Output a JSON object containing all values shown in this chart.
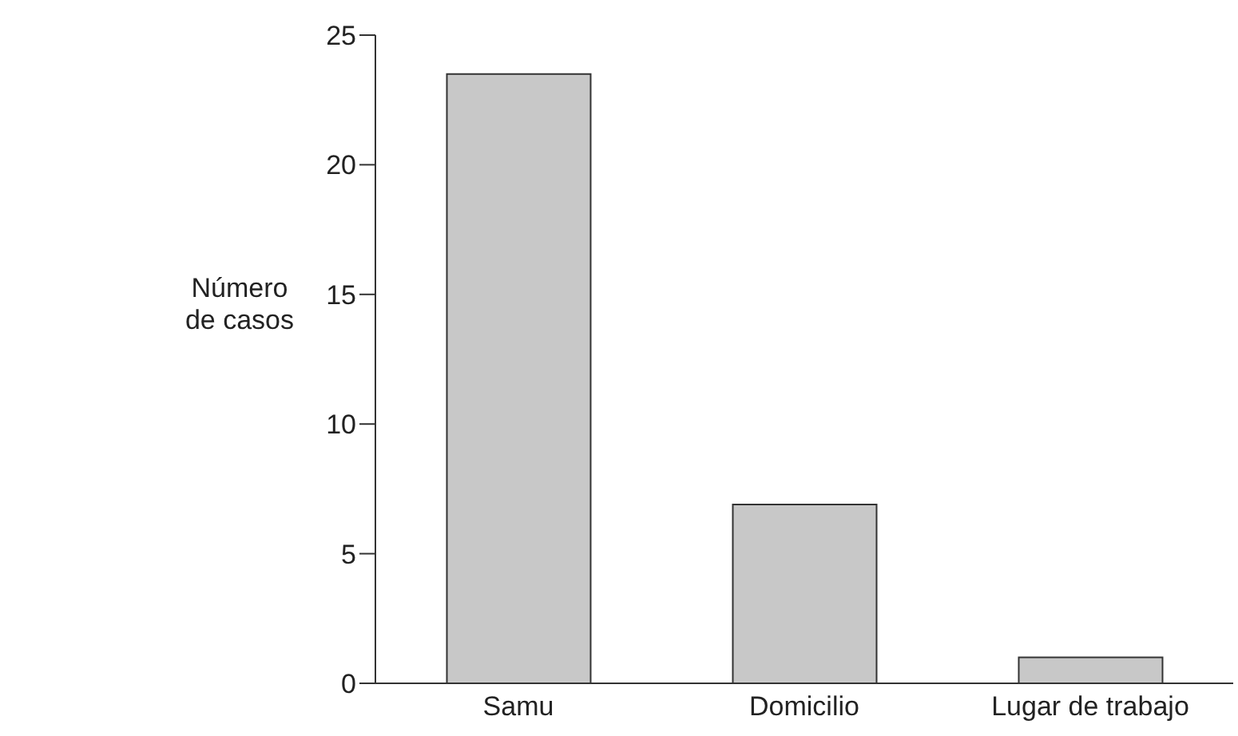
{
  "chart_data": {
    "type": "bar",
    "ylabel": "Número de casos",
    "categories": [
      "Samu",
      "Domicilio",
      "Lugar de trabajo"
    ],
    "values": [
      23.5,
      6.9,
      1
    ],
    "color": "#c8c8c8",
    "ylim": [
      0,
      25
    ],
    "yticks": [
      0,
      5,
      10,
      15,
      20,
      25
    ],
    "grid": false,
    "legend": false
  }
}
